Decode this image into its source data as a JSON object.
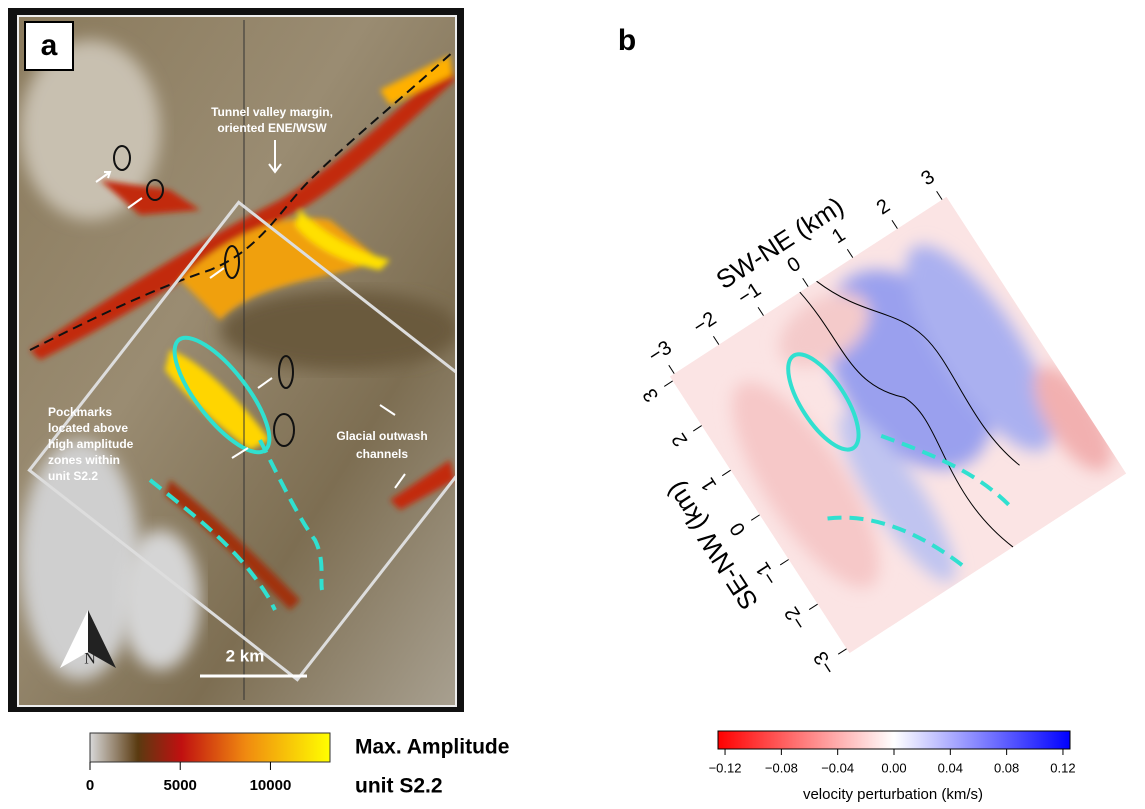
{
  "panel_a": {
    "label": "a",
    "annotations": {
      "tunnel": [
        "Tunnel valley margin,",
        "oriented ENE/WSW"
      ],
      "pockmarks": [
        "Pockmarks",
        "located above",
        "high amplitude",
        "zones within",
        "unit S2.2"
      ],
      "outwash": [
        "Glacial outwash",
        "channels"
      ]
    },
    "scale_bar": "2 km",
    "north": "N",
    "colorbar": {
      "title": [
        "Max. Amplitude",
        "unit S2.2"
      ],
      "lim": [
        0,
        13300
      ],
      "ticks": [
        0,
        5000,
        10000
      ]
    }
  },
  "panel_b": {
    "label": "b",
    "x_axis_label": "SW-NE (km)",
    "y_axis_label": "SE-NW (km)",
    "xlim": [
      -3.1,
      3.1
    ],
    "ylim": [
      -3.1,
      3.1
    ],
    "xticks": [
      {
        "value": -3,
        "label": "−3"
      },
      {
        "value": -2,
        "label": "−2"
      },
      {
        "value": -1,
        "label": "−1"
      },
      0,
      1,
      2,
      3
    ],
    "yticks": [
      {
        "value": -3,
        "label": "−3"
      },
      {
        "value": -2,
        "label": "−2"
      },
      {
        "value": -1,
        "label": "−1"
      },
      0,
      1,
      2,
      3
    ],
    "colorbar": {
      "label": "velocity perturbation (km/s)",
      "lim": [
        -0.125,
        0.125
      ],
      "ticks": [
        {
          "value": -0.12,
          "label": "−0.12"
        },
        {
          "value": -0.08,
          "label": "−0.08"
        },
        {
          "value": -0.04,
          "label": "−0.04"
        },
        {
          "value": 0,
          "label": "0.00"
        },
        0.04,
        0.08,
        0.12
      ]
    }
  }
}
